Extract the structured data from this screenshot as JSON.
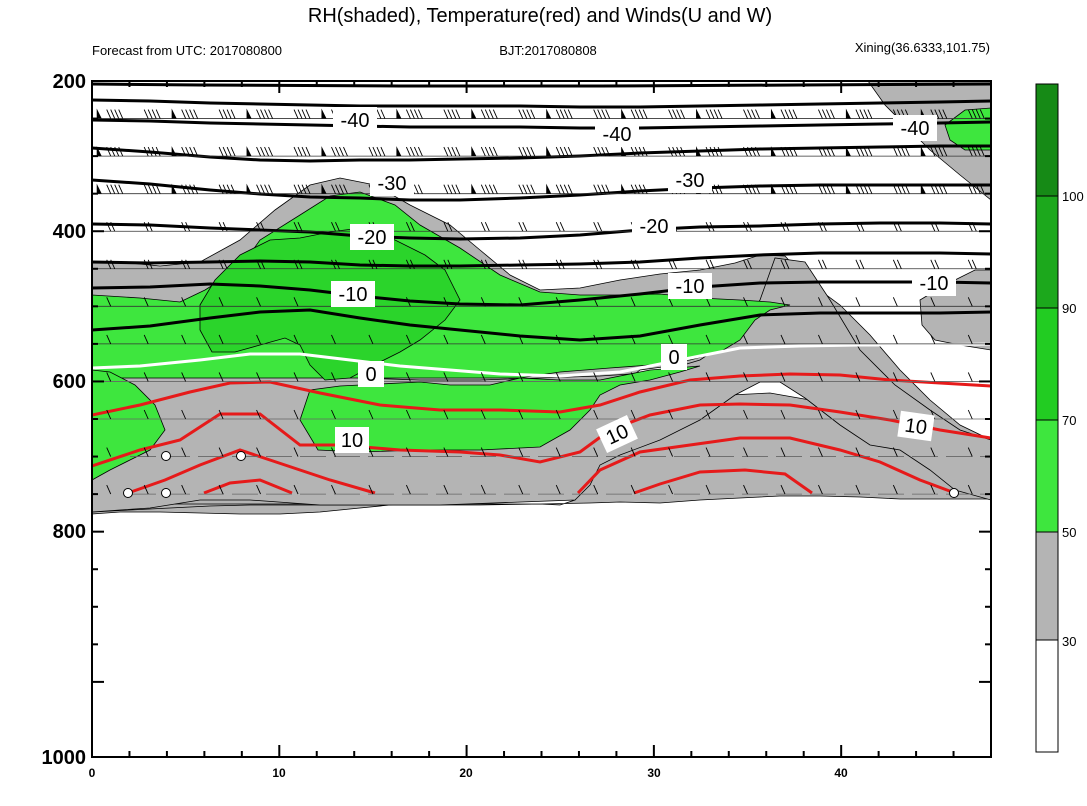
{
  "chart_data": {
    "type": "heatmap",
    "title": "RH(shaded), Temperature(red) and Winds(U and W)",
    "subtitle_left": "Forecast from UTC: 2017080800",
    "subtitle_center": "BJT:2017080808",
    "subtitle_right": "Xining(36.6333,101.75)",
    "x_axis": {
      "range": [
        0,
        48
      ],
      "ticks": [
        "0",
        "10",
        "20",
        "30",
        "40"
      ]
    },
    "y_axis": {
      "range": [
        200,
        1000
      ],
      "ticks": [
        "200",
        "400",
        "600",
        "800",
        "1000"
      ],
      "inverted": true
    },
    "colorbar": {
      "labels": [
        "30",
        "50",
        "70",
        "90",
        "100"
      ],
      "colors": [
        "#ffffff",
        "#b4b4b4",
        "#3ee63e",
        "#2bd42b",
        "#22c022",
        "#1ca81c",
        "#168a16"
      ]
    },
    "contour_labels": [
      "-40",
      "-40",
      "-40",
      "-30",
      "-30",
      "-20",
      "-20",
      "-10",
      "-10",
      "-10",
      "0",
      "0",
      "10",
      "10",
      "10"
    ],
    "temperature_levels": [
      -40,
      -30,
      -20,
      -10,
      0,
      10
    ],
    "colors": {
      "warm": "#e61a1a",
      "zero": "#ffffff",
      "cold": "#000000"
    }
  }
}
